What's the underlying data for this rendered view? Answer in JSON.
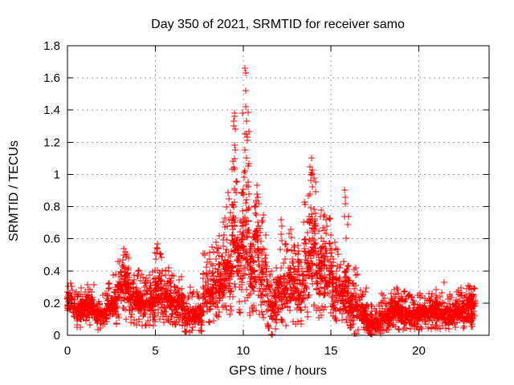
{
  "window_title": "Day 350 of 2021, SRMTID for receiver samo",
  "chart_data": {
    "type": "scatter",
    "title": "Day 350 of 2021, SRMTID for receiver samo",
    "xlabel": "GPS time / hours",
    "ylabel": "SRMTID / TECUs",
    "xlim": [
      0,
      24
    ],
    "ylim": [
      0,
      1.8
    ],
    "xticks": [
      0,
      5,
      10,
      15,
      20
    ],
    "xtick_labels": [
      "0",
      "5",
      "10",
      "15",
      "20"
    ],
    "yticks": [
      0,
      0.2,
      0.4,
      0.6,
      0.8,
      1.0,
      1.2,
      1.4,
      1.6,
      1.8
    ],
    "ytick_labels": [
      "0",
      "0.2",
      "0.4",
      "0.6",
      "0.8",
      "1",
      "1.2",
      "1.4",
      "1.6",
      "1.8"
    ],
    "grid": true,
    "grid_color": "#9e9e9e",
    "frame_color": "#000000",
    "background_color": "#ffffff",
    "legend": "none",
    "marker": "plus",
    "marker_color": "#ff0000",
    "series_name": "SRMTID",
    "data_time_span_hours": [
      0.0,
      23.25
    ],
    "max_point": [
      10.12,
      1.66
    ],
    "bin_format": [
      "t_start_hour",
      "t_end_hour",
      "band_low_TECU",
      "band_high_TECU",
      "band_max_TECU",
      "n_points"
    ],
    "envelope_bins": [
      [
        0.0,
        0.35,
        0.13,
        0.3,
        0.33,
        45
      ],
      [
        0.35,
        1.05,
        0.09,
        0.24,
        0.3,
        95
      ],
      [
        1.05,
        1.55,
        0.1,
        0.26,
        0.34,
        70
      ],
      [
        1.55,
        2.25,
        0.06,
        0.2,
        0.28,
        95
      ],
      [
        2.25,
        2.85,
        0.1,
        0.28,
        0.38,
        85
      ],
      [
        2.85,
        3.55,
        0.18,
        0.44,
        0.52,
        95
      ],
      [
        3.55,
        4.15,
        0.12,
        0.32,
        0.42,
        85
      ],
      [
        4.15,
        4.95,
        0.1,
        0.3,
        0.4,
        110
      ],
      [
        4.95,
        5.35,
        0.15,
        0.44,
        0.55,
        60
      ],
      [
        5.35,
        5.9,
        0.12,
        0.32,
        0.42,
        75
      ],
      [
        5.9,
        6.65,
        0.1,
        0.3,
        0.38,
        100
      ],
      [
        6.65,
        7.7,
        0.03,
        0.22,
        0.3,
        135
      ],
      [
        7.7,
        8.35,
        0.1,
        0.42,
        0.52,
        90
      ],
      [
        8.35,
        8.85,
        0.15,
        0.48,
        0.58,
        75
      ],
      [
        8.85,
        9.35,
        0.2,
        0.62,
        0.82,
        75
      ],
      [
        9.35,
        9.65,
        0.3,
        0.95,
        1.22,
        50
      ],
      [
        9.65,
        9.95,
        0.25,
        0.68,
        0.92,
        50
      ],
      [
        9.95,
        10.35,
        0.3,
        1.0,
        1.4,
        65
      ],
      [
        10.35,
        10.65,
        0.2,
        0.52,
        0.62,
        48
      ],
      [
        10.65,
        10.9,
        0.25,
        0.75,
        0.9,
        42
      ],
      [
        10.9,
        11.35,
        0.18,
        0.58,
        0.74,
        62
      ],
      [
        11.35,
        11.9,
        0.06,
        0.3,
        0.4,
        72
      ],
      [
        11.9,
        12.45,
        0.1,
        0.42,
        0.6,
        72
      ],
      [
        12.45,
        12.9,
        0.12,
        0.52,
        0.64,
        60
      ],
      [
        12.9,
        13.45,
        0.1,
        0.45,
        0.56,
        72
      ],
      [
        13.45,
        13.8,
        0.2,
        0.68,
        0.92,
        52
      ],
      [
        13.8,
        14.15,
        0.25,
        0.85,
        1.05,
        58
      ],
      [
        14.15,
        14.55,
        0.2,
        0.58,
        0.78,
        58
      ],
      [
        14.55,
        15.05,
        0.2,
        0.62,
        0.76,
        68
      ],
      [
        15.05,
        15.45,
        0.12,
        0.45,
        0.58,
        58
      ],
      [
        15.45,
        15.75,
        0.1,
        0.4,
        0.52,
        42
      ],
      [
        15.75,
        16.0,
        0.12,
        0.52,
        0.8,
        38
      ],
      [
        16.0,
        16.55,
        0.08,
        0.3,
        0.44,
        75
      ],
      [
        16.55,
        17.05,
        0.05,
        0.22,
        0.3,
        70
      ],
      [
        17.05,
        17.85,
        0.01,
        0.13,
        0.2,
        105
      ],
      [
        17.85,
        18.35,
        0.04,
        0.18,
        0.26,
        70
      ],
      [
        18.35,
        18.85,
        0.07,
        0.25,
        0.32,
        70
      ],
      [
        18.85,
        19.55,
        0.05,
        0.2,
        0.28,
        95
      ],
      [
        19.55,
        20.55,
        0.06,
        0.2,
        0.28,
        135
      ],
      [
        20.55,
        21.35,
        0.07,
        0.23,
        0.3,
        110
      ],
      [
        21.35,
        22.05,
        0.06,
        0.19,
        0.26,
        95
      ],
      [
        22.05,
        22.65,
        0.07,
        0.22,
        0.3,
        88
      ],
      [
        22.65,
        23.25,
        0.07,
        0.28,
        0.33,
        95
      ]
    ],
    "extreme_points": [
      [
        9.42,
        1.08
      ],
      [
        9.45,
        1.3
      ],
      [
        9.47,
        1.33
      ],
      [
        9.5,
        1.36
      ],
      [
        9.52,
        1.38
      ],
      [
        9.55,
        1.28
      ],
      [
        9.5,
        1.18
      ],
      [
        9.56,
        1.15
      ],
      [
        9.48,
        1.04
      ],
      [
        10.12,
        1.66
      ],
      [
        10.14,
        1.63
      ],
      [
        10.16,
        1.52
      ],
      [
        10.15,
        1.42
      ],
      [
        10.2,
        1.33
      ],
      [
        10.1,
        1.25
      ],
      [
        10.22,
        1.21
      ],
      [
        10.08,
        1.15
      ],
      [
        10.18,
        1.1
      ],
      [
        10.28,
        1.05
      ],
      [
        10.12,
        1.02
      ],
      [
        10.05,
        0.98
      ],
      [
        10.78,
        0.93
      ],
      [
        10.8,
        0.88
      ],
      [
        10.75,
        0.84
      ],
      [
        11.15,
        0.75
      ],
      [
        12.18,
        0.72
      ],
      [
        12.22,
        0.68
      ],
      [
        12.15,
        0.63
      ],
      [
        12.72,
        0.66
      ],
      [
        12.75,
        0.61
      ],
      [
        13.88,
        1.1
      ],
      [
        13.9,
        1.01
      ],
      [
        13.95,
        1.0
      ],
      [
        13.85,
        0.96
      ],
      [
        13.92,
        0.92
      ],
      [
        13.82,
        0.88
      ],
      [
        14.62,
        0.75
      ],
      [
        14.7,
        0.72
      ],
      [
        14.78,
        0.68
      ],
      [
        15.78,
        0.9
      ],
      [
        15.8,
        0.86
      ],
      [
        15.82,
        0.82
      ],
      [
        15.76,
        0.74
      ],
      [
        5.1,
        0.57
      ],
      [
        5.12,
        0.54
      ],
      [
        5.08,
        0.51
      ],
      [
        3.2,
        0.54
      ],
      [
        3.28,
        0.52
      ],
      [
        3.35,
        0.49
      ],
      [
        3.15,
        0.47
      ],
      [
        8.25,
        0.55
      ],
      [
        8.45,
        0.58
      ],
      [
        8.62,
        0.62
      ],
      [
        9.12,
        0.89
      ],
      [
        9.2,
        0.85
      ],
      [
        9.05,
        0.8
      ],
      [
        21.46,
        0.33
      ],
      [
        11.62,
        0.005
      ],
      [
        11.67,
        0.005
      ],
      [
        16.32,
        0.01
      ],
      [
        16.38,
        0.008
      ],
      [
        16.45,
        0.012
      ]
    ]
  }
}
